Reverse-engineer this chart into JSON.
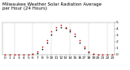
{
  "title": "Milwaukee Weather Solar Radiation Average",
  "subtitle": "per Hour (24 Hours)",
  "hours": [
    0,
    1,
    2,
    3,
    4,
    5,
    6,
    7,
    8,
    9,
    10,
    11,
    12,
    13,
    14,
    15,
    16,
    17,
    18,
    19,
    20,
    21,
    22,
    23
  ],
  "series1_values": [
    0,
    0,
    0,
    0,
    0,
    2,
    8,
    30,
    100,
    210,
    340,
    430,
    470,
    450,
    390,
    310,
    210,
    110,
    35,
    8,
    2,
    0,
    0,
    0
  ],
  "series2_values": [
    0,
    0,
    0,
    0,
    0,
    4,
    15,
    50,
    130,
    250,
    390,
    470,
    500,
    470,
    420,
    350,
    250,
    140,
    55,
    15,
    4,
    0,
    0,
    0
  ],
  "series1_color": "#000000",
  "series2_color": "#dd0000",
  "background_color": "#ffffff",
  "grid_color": "#999999",
  "ylim": [
    0,
    550
  ],
  "vgrid_positions": [
    2,
    6,
    10,
    14,
    18,
    22
  ],
  "marker_size": 1.2,
  "title_fontsize": 4.0,
  "tick_fontsize": 3.2,
  "ytick_values": [
    0,
    110,
    220,
    330,
    440,
    550
  ],
  "ytick_labels": [
    "0",
    "1",
    "2",
    "3",
    "4",
    "5"
  ],
  "xtick_positions": [
    0,
    1,
    2,
    3,
    4,
    5,
    6,
    7,
    8,
    9,
    10,
    11,
    12,
    13,
    14,
    15,
    16,
    17,
    18,
    19,
    20,
    21,
    22,
    23
  ],
  "xtick_labels": [
    "0",
    "1",
    "2",
    "3",
    "4",
    "5",
    "6",
    "7",
    "8",
    "9",
    "10",
    "11",
    "12",
    "13",
    "14",
    "15",
    "16",
    "17",
    "18",
    "19",
    "20",
    "21",
    "22",
    "23"
  ]
}
